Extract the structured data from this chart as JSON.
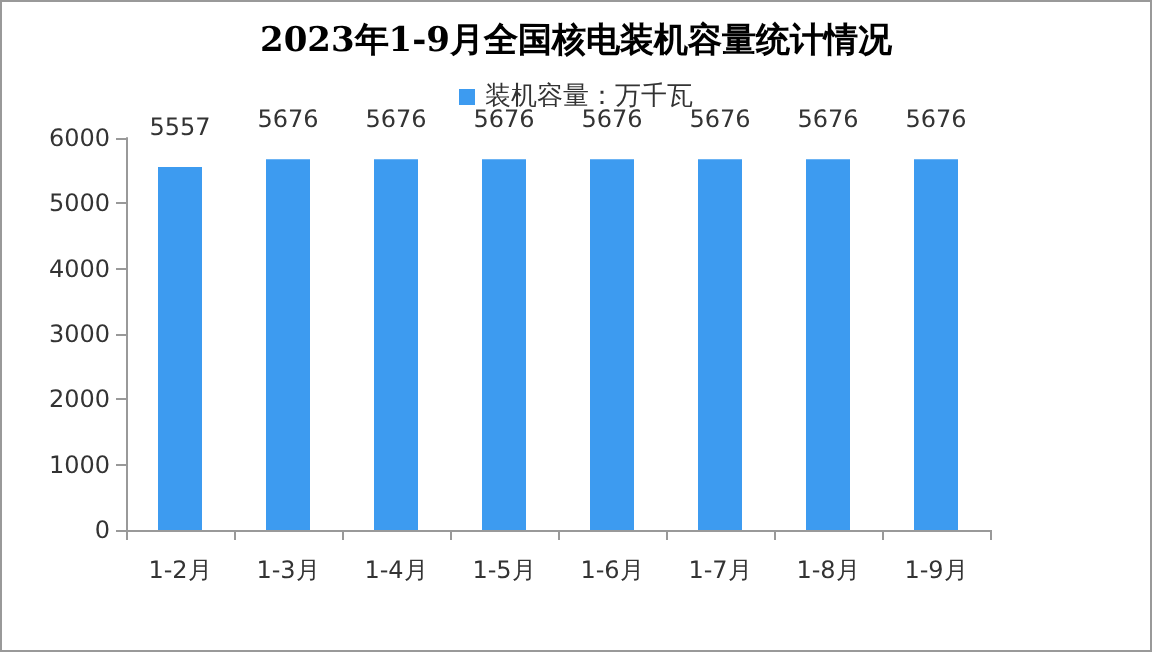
{
  "chart_data": {
    "type": "bar",
    "title": "2023年1-9月全国核电装机容量统计情况",
    "categories": [
      "1-2月",
      "1-3月",
      "1-4月",
      "1-5月",
      "1-6月",
      "1-7月",
      "1-8月",
      "1-9月"
    ],
    "series": [
      {
        "name": "装机容量：万千瓦",
        "color": "#3d9bf0",
        "values": [
          5557,
          5676,
          5676,
          5676,
          5676,
          5676,
          5676,
          5676
        ]
      }
    ],
    "ylim": [
      0,
      6000
    ],
    "yticks": [
      0,
      1000,
      2000,
      3000,
      4000,
      5000,
      6000
    ],
    "grid": false,
    "legend": "top",
    "data_labels": true
  }
}
